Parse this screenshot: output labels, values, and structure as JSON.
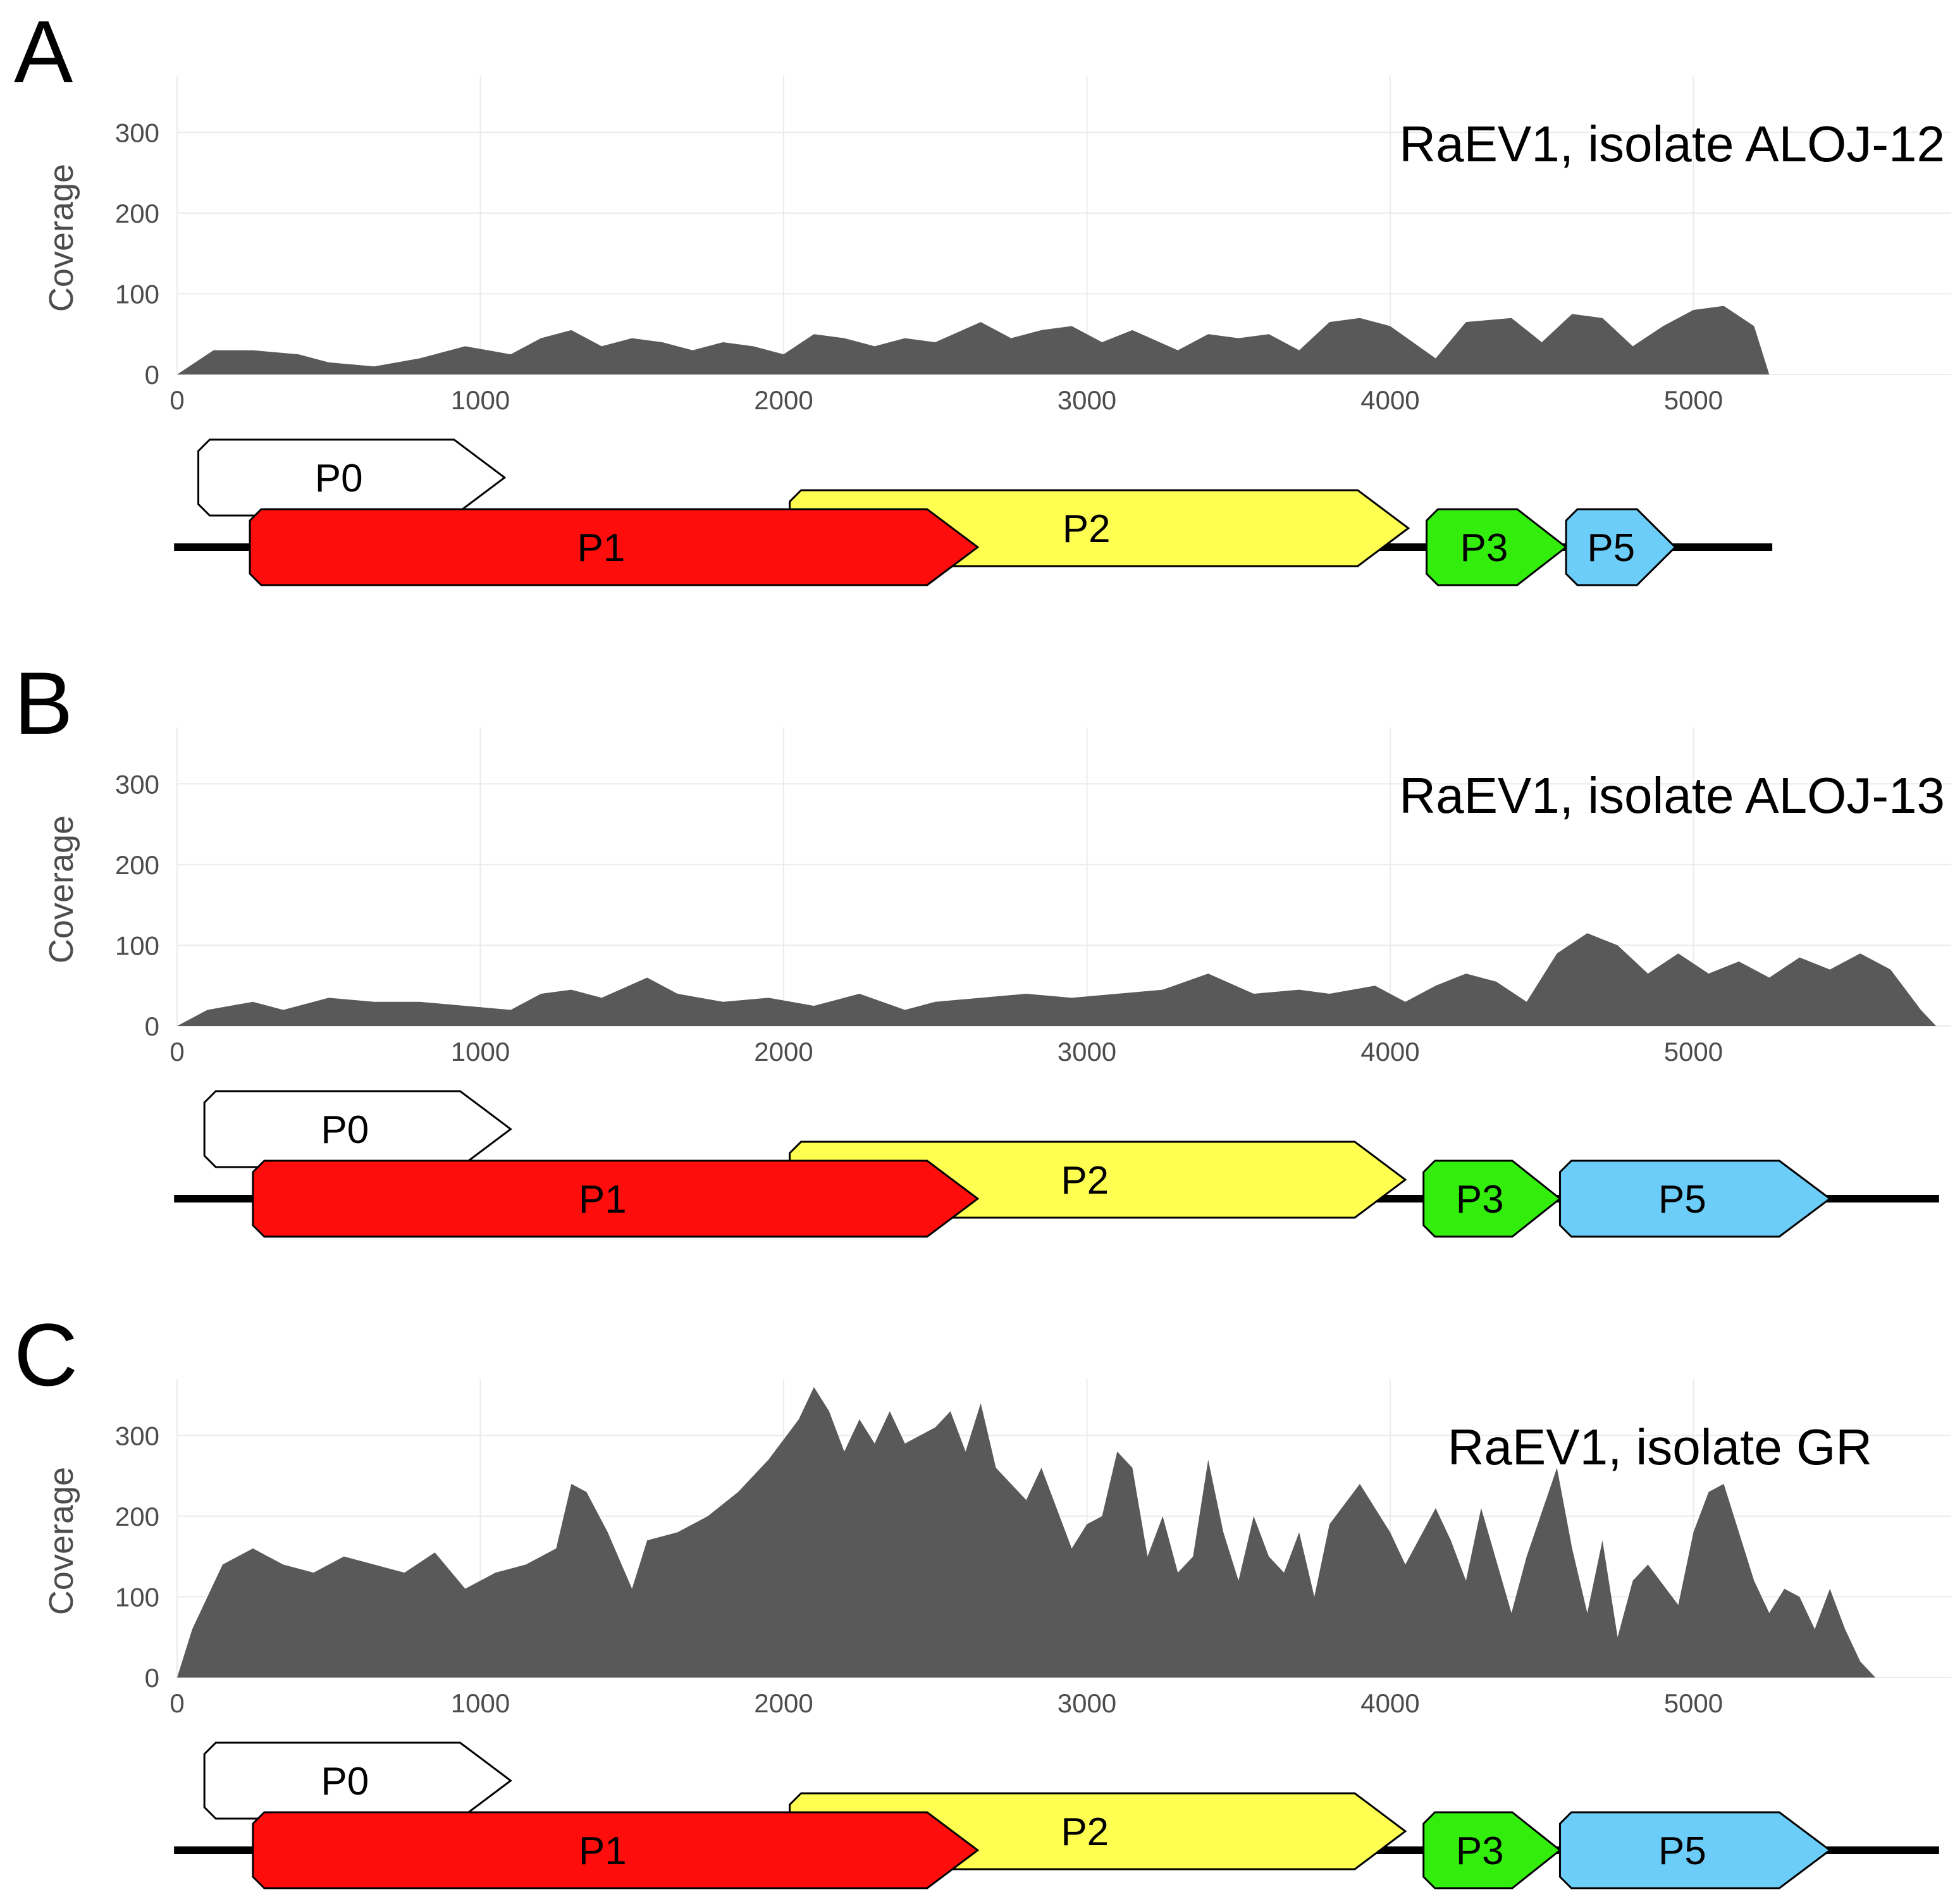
{
  "chart_data": [
    {
      "type": "area",
      "panel_label": "A",
      "title": "RaEV1, isolate ALOJ-12",
      "ylabel": "Coverage",
      "xlabel": "",
      "xlim": [
        0,
        5850
      ],
      "ylim": [
        0,
        370
      ],
      "xticks": [
        "0",
        "1000",
        "2000",
        "3000",
        "4000",
        "5000"
      ],
      "yticks": [
        "0",
        "100",
        "200",
        "300"
      ],
      "genome_length": 5250,
      "x": [
        0,
        120,
        250,
        400,
        500,
        650,
        800,
        950,
        1100,
        1200,
        1300,
        1400,
        1500,
        1600,
        1700,
        1800,
        1900,
        2000,
        2100,
        2200,
        2300,
        2400,
        2500,
        2650,
        2750,
        2850,
        2950,
        3050,
        3150,
        3300,
        3400,
        3500,
        3600,
        3700,
        3800,
        3900,
        4000,
        4150,
        4250,
        4400,
        4500,
        4600,
        4700,
        4800,
        4900,
        5000,
        5100,
        5200,
        5250
      ],
      "values": [
        0,
        30,
        30,
        25,
        15,
        10,
        20,
        35,
        25,
        45,
        55,
        35,
        45,
        40,
        30,
        40,
        35,
        25,
        50,
        45,
        35,
        45,
        40,
        65,
        45,
        55,
        60,
        40,
        55,
        30,
        50,
        45,
        50,
        30,
        65,
        70,
        60,
        20,
        65,
        70,
        40,
        75,
        70,
        35,
        60,
        80,
        85,
        60,
        0
      ],
      "genes": [
        {
          "name": "P0",
          "start": 70,
          "end": 1080,
          "row": "upper",
          "color": "#ffffff"
        },
        {
          "name": "P1",
          "start": 240,
          "end": 2640,
          "row": "middle",
          "color": "#ff0d0d"
        },
        {
          "name": "P2",
          "start": 2020,
          "end": 4060,
          "row": "upper2",
          "color": "#ffff52"
        },
        {
          "name": "P3",
          "start": 4120,
          "end": 4580,
          "row": "middle",
          "color": "#33ee0d"
        },
        {
          "name": "P5",
          "start": 4580,
          "end": 4940,
          "row": "middle",
          "color": "#6ccdf8"
        }
      ]
    },
    {
      "type": "area",
      "panel_label": "B",
      "title": "RaEV1, isolate ALOJ-13",
      "ylabel": "Coverage",
      "xlabel": "",
      "xlim": [
        0,
        5850
      ],
      "ylim": [
        0,
        370
      ],
      "xticks": [
        "0",
        "1000",
        "2000",
        "3000",
        "4000",
        "5000"
      ],
      "yticks": [
        "0",
        "100",
        "200",
        "300"
      ],
      "genome_length": 5800,
      "x": [
        0,
        100,
        250,
        350,
        500,
        650,
        800,
        950,
        1100,
        1200,
        1300,
        1400,
        1550,
        1650,
        1800,
        1950,
        2100,
        2250,
        2400,
        2500,
        2650,
        2800,
        2950,
        3100,
        3250,
        3400,
        3550,
        3700,
        3800,
        3950,
        4050,
        4150,
        4250,
        4350,
        4450,
        4550,
        4650,
        4750,
        4850,
        4950,
        5050,
        5150,
        5250,
        5350,
        5450,
        5550,
        5650,
        5750,
        5800
      ],
      "values": [
        0,
        20,
        30,
        20,
        35,
        30,
        30,
        25,
        20,
        40,
        45,
        35,
        60,
        40,
        30,
        35,
        25,
        40,
        20,
        30,
        35,
        40,
        35,
        40,
        45,
        65,
        40,
        45,
        40,
        50,
        30,
        50,
        65,
        55,
        30,
        90,
        115,
        100,
        65,
        90,
        65,
        80,
        60,
        85,
        70,
        90,
        70,
        20,
        0
      ],
      "genes": [
        {
          "name": "P0",
          "start": 90,
          "end": 1100,
          "row": "upper",
          "color": "#ffffff"
        },
        {
          "name": "P1",
          "start": 250,
          "end": 2640,
          "row": "middle",
          "color": "#ff0d0d"
        },
        {
          "name": "P2",
          "start": 2020,
          "end": 4050,
          "row": "upper2",
          "color": "#ffff52"
        },
        {
          "name": "P3",
          "start": 4110,
          "end": 4560,
          "row": "middle",
          "color": "#33ee0d"
        },
        {
          "name": "P5",
          "start": 4560,
          "end": 5450,
          "row": "middle",
          "color": "#6ccdf8"
        }
      ]
    },
    {
      "type": "area",
      "panel_label": "C",
      "title": "RaEV1, isolate GR",
      "ylabel": "Coverage",
      "xlabel": "",
      "xlim": [
        0,
        5850
      ],
      "ylim": [
        0,
        370
      ],
      "xticks": [
        "0",
        "1000",
        "2000",
        "3000",
        "4000",
        "5000"
      ],
      "yticks": [
        "0",
        "100",
        "200",
        "300"
      ],
      "genome_length": 5800,
      "x": [
        0,
        50,
        150,
        250,
        350,
        450,
        550,
        650,
        750,
        850,
        950,
        1050,
        1150,
        1250,
        1300,
        1350,
        1420,
        1500,
        1550,
        1650,
        1750,
        1850,
        1950,
        2050,
        2100,
        2150,
        2200,
        2250,
        2300,
        2350,
        2400,
        2450,
        2500,
        2550,
        2600,
        2650,
        2700,
        2800,
        2850,
        2950,
        3000,
        3050,
        3100,
        3150,
        3200,
        3250,
        3300,
        3350,
        3400,
        3450,
        3500,
        3550,
        3600,
        3650,
        3700,
        3750,
        3800,
        3900,
        4000,
        4050,
        4150,
        4200,
        4250,
        4300,
        4400,
        4450,
        4550,
        4600,
        4650,
        4700,
        4750,
        4800,
        4850,
        4950,
        5000,
        5050,
        5100,
        5200,
        5250,
        5300,
        5350,
        5400,
        5450,
        5500,
        5550,
        5600,
        5650,
        5700,
        5750,
        5800
      ],
      "values": [
        0,
        60,
        140,
        160,
        140,
        130,
        150,
        140,
        130,
        155,
        110,
        130,
        140,
        160,
        240,
        230,
        180,
        110,
        170,
        180,
        200,
        230,
        270,
        320,
        360,
        330,
        280,
        320,
        290,
        330,
        290,
        300,
        310,
        330,
        280,
        340,
        260,
        220,
        260,
        160,
        190,
        200,
        280,
        260,
        150,
        200,
        130,
        150,
        270,
        180,
        120,
        200,
        150,
        130,
        180,
        100,
        190,
        240,
        180,
        140,
        210,
        170,
        120,
        210,
        80,
        150,
        260,
        160,
        80,
        170,
        50,
        120,
        140,
        90,
        180,
        230,
        240,
        120,
        80,
        110,
        100,
        60,
        110,
        60,
        20,
        0,
        0,
        0,
        0,
        0
      ],
      "genes": [
        {
          "name": "P0",
          "start": 90,
          "end": 1100,
          "row": "upper",
          "color": "#ffffff"
        },
        {
          "name": "P1",
          "start": 250,
          "end": 2640,
          "row": "middle",
          "color": "#ff0d0d"
        },
        {
          "name": "P2",
          "start": 2020,
          "end": 4050,
          "row": "upper2",
          "color": "#ffff52"
        },
        {
          "name": "P3",
          "start": 4110,
          "end": 4560,
          "row": "middle",
          "color": "#33ee0d"
        },
        {
          "name": "P5",
          "start": 4560,
          "end": 5450,
          "row": "middle",
          "color": "#6ccdf8"
        }
      ]
    }
  ]
}
